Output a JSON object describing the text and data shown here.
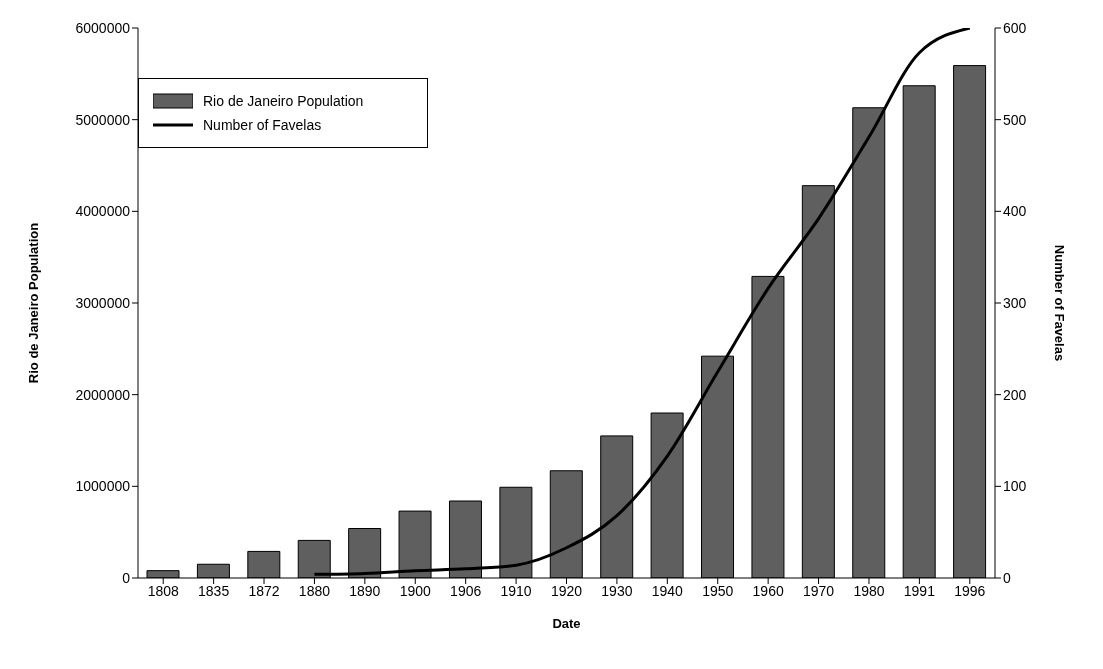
{
  "chart_data": {
    "type": "bar",
    "xlabel": "Date",
    "ylabel": "Rio de Janeiro Population",
    "y2label": "Number of Favelas",
    "categories": [
      "1808",
      "1835",
      "1872",
      "1880",
      "1890",
      "1900",
      "1906",
      "1910",
      "1920",
      "1930",
      "1940",
      "1950",
      "1960",
      "1970",
      "1980",
      "1991",
      "1996"
    ],
    "series": [
      {
        "name": "Rio de Janeiro Population",
        "color": "#5f5f5f",
        "values": [
          80000,
          150000,
          290000,
          410000,
          540000,
          730000,
          840000,
          990000,
          1170000,
          1550000,
          1800000,
          2420000,
          3290000,
          4280000,
          5130000,
          5370000,
          5590000
        ]
      },
      {
        "name": "Number of Favelas",
        "type": "line",
        "axis": "y2",
        "color": "#000000",
        "values": [
          null,
          null,
          null,
          4,
          5,
          8,
          10,
          14,
          33,
          68,
          133,
          225,
          316,
          392,
          481,
          573,
          600
        ]
      }
    ],
    "ylim": [
      0,
      6000000
    ],
    "yticks": [
      0,
      1000000,
      2000000,
      3000000,
      4000000,
      5000000,
      6000000
    ],
    "y2lim": [
      0,
      600
    ],
    "y2ticks": [
      0,
      100,
      200,
      300,
      400,
      500,
      600
    ],
    "grid": false,
    "legend": "top left",
    "marker": "none",
    "line_style": "solid"
  }
}
